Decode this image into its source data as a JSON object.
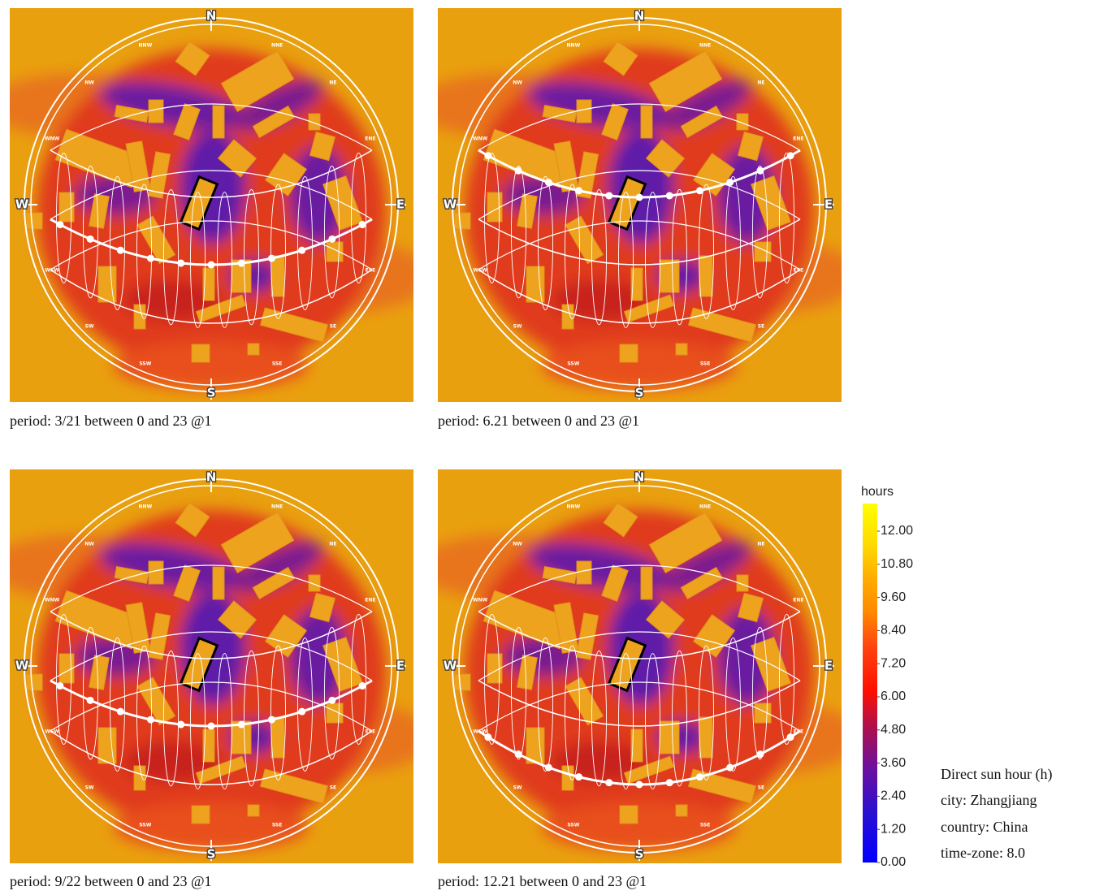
{
  "panels": [
    {
      "caption": "period: 3/21 between 0 and 23 @1"
    },
    {
      "caption": "period: 6.21 between 0 and 23 @1"
    },
    {
      "caption": "period: 9/22 between 0 and 23 @1"
    },
    {
      "caption": "period: 12.21 between 0 and 23 @1"
    }
  ],
  "compass": [
    "N",
    "NNE",
    "NE",
    "ENE",
    "E",
    "ESE",
    "SE",
    "SSE",
    "S",
    "SSW",
    "SW",
    "WSW",
    "W",
    "WNW",
    "NW",
    "NNW"
  ],
  "legend": {
    "title": "hours",
    "range": [
      0,
      13
    ],
    "ticks": [
      {
        "value": 0,
        "label": "0.00"
      },
      {
        "value": 1.2,
        "label": "1.20"
      },
      {
        "value": 2.4,
        "label": "2.40"
      },
      {
        "value": 3.6,
        "label": "3.60"
      },
      {
        "value": 4.8,
        "label": "4.80"
      },
      {
        "value": 6,
        "label": "6.00"
      },
      {
        "value": 7.2,
        "label": "7.20"
      },
      {
        "value": 8.4,
        "label": "8.40"
      },
      {
        "value": 9.6,
        "label": "9.60"
      },
      {
        "value": 10.8,
        "label": "10.80"
      },
      {
        "value": 12,
        "label": "12.00"
      }
    ]
  },
  "info": [
    "Direct sun hour (h)",
    "city: Zhangjiang",
    "country: China",
    "time-zone: 8.0"
  ]
}
